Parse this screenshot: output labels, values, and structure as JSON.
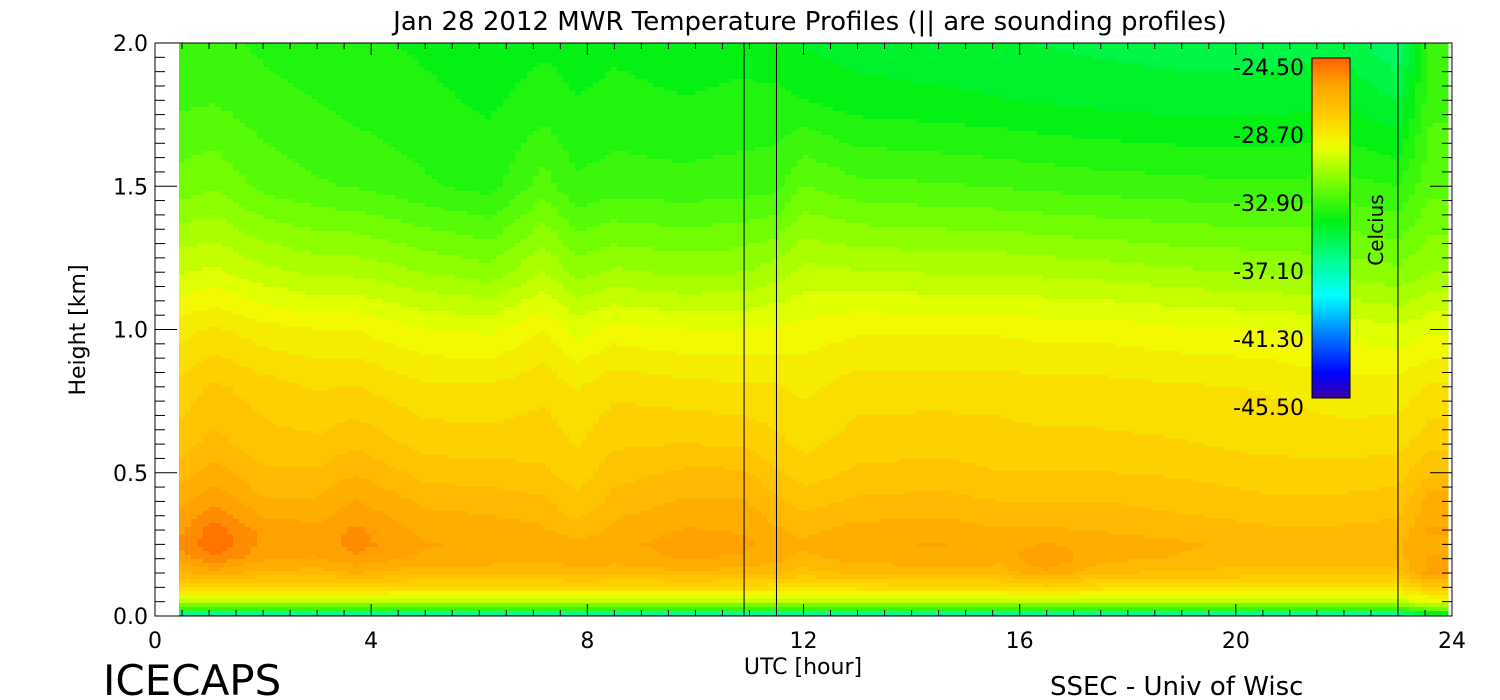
{
  "chart_data": {
    "type": "heatmap",
    "title": "Jan 28 2012 MWR Temperature Profiles (|| are sounding profiles)",
    "xlabel": "UTC [hour]",
    "ylabel": "Height [km]",
    "xlim": [
      0,
      24
    ],
    "ylim": [
      0,
      2.0
    ],
    "x_ticks": [
      "0",
      "4",
      "8",
      "12",
      "16",
      "20",
      "24"
    ],
    "x_tick_values": [
      0,
      4,
      8,
      12,
      16,
      20,
      24
    ],
    "y_ticks": [
      "0.0",
      "0.5",
      "1.0",
      "1.5",
      "2.0"
    ],
    "y_tick_values": [
      0,
      0.5,
      1.0,
      1.5,
      2.0
    ],
    "colorbar": {
      "label": "Celcius",
      "ticks": [
        "-24.50",
        "-28.70",
        "-32.90",
        "-37.10",
        "-41.30",
        "-45.50"
      ],
      "min": -45.5,
      "max": -24.5,
      "placement": "top-right, inside plot"
    },
    "sounding_profiles_utc": [
      10.9,
      11.5,
      23.0
    ],
    "heights_km": [
      0.0,
      0.02,
      0.05,
      0.1,
      0.15,
      0.2,
      0.25,
      0.3,
      0.4,
      0.5,
      0.6,
      0.8,
      1.0,
      1.2,
      1.5,
      1.8,
      2.0
    ],
    "profiles": [
      {
        "hour": 0.4,
        "temps": [
          -40,
          -34,
          -31,
          -28.5,
          -27.0,
          -26.2,
          -25.8,
          -26.0,
          -26.6,
          -27.2,
          -27.7,
          -28.3,
          -29.2,
          -30.6,
          -32.4,
          -33.3,
          -33.6
        ]
      },
      {
        "hour": 1.1,
        "temps": [
          -40,
          -34,
          -31,
          -28.3,
          -26.6,
          -25.4,
          -24.9,
          -25.0,
          -25.9,
          -26.6,
          -27.2,
          -27.8,
          -28.9,
          -30.4,
          -32.2,
          -33.2,
          -33.5
        ]
      },
      {
        "hour": 2.0,
        "temps": [
          -40,
          -34,
          -31,
          -28.5,
          -27.0,
          -26.2,
          -25.9,
          -26.0,
          -26.8,
          -27.3,
          -27.7,
          -28.2,
          -29.3,
          -30.9,
          -32.8,
          -33.5,
          -33.8
        ]
      },
      {
        "hour": 3.0,
        "temps": [
          -40,
          -34,
          -31,
          -28.5,
          -27.1,
          -26.4,
          -26.1,
          -26.2,
          -26.8,
          -27.3,
          -27.8,
          -28.5,
          -29.5,
          -31.2,
          -33.1,
          -33.7,
          -34.0
        ]
      },
      {
        "hour": 3.7,
        "temps": [
          -40,
          -34,
          -31,
          -28.4,
          -26.8,
          -25.9,
          -25.6,
          -25.7,
          -26.3,
          -26.9,
          -27.5,
          -28.4,
          -29.5,
          -31.2,
          -33.2,
          -33.9,
          -34.1
        ]
      },
      {
        "hour": 5.0,
        "temps": [
          -40,
          -34,
          -31,
          -28.6,
          -27.2,
          -26.5,
          -26.3,
          -26.5,
          -27.0,
          -27.6,
          -28.1,
          -28.9,
          -30.0,
          -31.6,
          -33.6,
          -34.1,
          -34.3
        ]
      },
      {
        "hour": 6.2,
        "temps": [
          -40,
          -34,
          -31,
          -28.6,
          -27.2,
          -26.6,
          -26.4,
          -26.6,
          -27.1,
          -27.7,
          -28.2,
          -28.9,
          -30.1,
          -31.9,
          -33.9,
          -34.3,
          -34.5
        ]
      },
      {
        "hour": 7.2,
        "temps": [
          -40,
          -34,
          -31,
          -28.6,
          -27.3,
          -26.7,
          -26.5,
          -26.8,
          -27.3,
          -27.8,
          -28.1,
          -28.6,
          -29.5,
          -31.0,
          -32.9,
          -34.0,
          -34.3
        ]
      },
      {
        "hour": 7.8,
        "temps": [
          -40,
          -34,
          -31,
          -28.5,
          -27.0,
          -26.6,
          -26.7,
          -27.2,
          -27.8,
          -28.2,
          -28.5,
          -29.0,
          -30.2,
          -31.8,
          -33.6,
          -34.2,
          -34.4
        ]
      },
      {
        "hour": 8.5,
        "temps": [
          -40,
          -34,
          -31,
          -28.6,
          -27.2,
          -26.6,
          -26.5,
          -26.7,
          -27.2,
          -27.6,
          -28.0,
          -28.6,
          -29.8,
          -31.5,
          -33.4,
          -34.1,
          -34.3
        ]
      },
      {
        "hour": 9.8,
        "temps": [
          -40,
          -34,
          -31,
          -28.6,
          -27.0,
          -26.3,
          -26.1,
          -26.3,
          -26.8,
          -27.3,
          -27.9,
          -28.8,
          -30.0,
          -31.7,
          -33.5,
          -34.2,
          -34.4
        ]
      },
      {
        "hour": 10.9,
        "temps": [
          -40,
          -34,
          -31,
          -28.6,
          -27.1,
          -26.4,
          -26.2,
          -26.4,
          -26.8,
          -27.3,
          -28.0,
          -28.9,
          -30.0,
          -31.6,
          -33.4,
          -34.1,
          -34.4
        ]
      },
      {
        "hour": 11.5,
        "temps": [
          -40,
          -34,
          -31,
          -28.7,
          -27.3,
          -26.7,
          -26.5,
          -26.8,
          -27.3,
          -27.8,
          -28.3,
          -28.9,
          -29.9,
          -31.3,
          -33.3,
          -34.1,
          -34.5
        ]
      },
      {
        "hour": 12.0,
        "temps": [
          -40,
          -34,
          -31,
          -28.9,
          -27.6,
          -27.0,
          -26.8,
          -27.0,
          -27.6,
          -28.2,
          -28.6,
          -29.1,
          -29.8,
          -30.9,
          -32.6,
          -34.2,
          -34.8
        ]
      },
      {
        "hour": 13.0,
        "temps": [
          -40,
          -34,
          -31,
          -28.7,
          -27.3,
          -26.6,
          -26.4,
          -26.7,
          -27.3,
          -27.8,
          -28.2,
          -28.7,
          -29.6,
          -31.0,
          -33.0,
          -34.5,
          -35.0
        ]
      },
      {
        "hour": 14.5,
        "temps": [
          -40,
          -34,
          -31,
          -28.6,
          -27.2,
          -26.5,
          -26.3,
          -26.6,
          -27.2,
          -27.7,
          -28.1,
          -28.7,
          -29.6,
          -31.1,
          -33.1,
          -34.6,
          -35.1
        ]
      },
      {
        "hour": 15.6,
        "temps": [
          -40,
          -34,
          -31,
          -28.6,
          -27.2,
          -26.6,
          -26.5,
          -26.8,
          -27.4,
          -27.9,
          -28.2,
          -28.7,
          -29.6,
          -31.1,
          -33.2,
          -34.7,
          -35.2
        ]
      },
      {
        "hour": 16.5,
        "temps": [
          -40,
          -34,
          -31,
          -28.2,
          -26.4,
          -25.9,
          -26.3,
          -26.8,
          -27.4,
          -27.9,
          -28.3,
          -28.8,
          -29.7,
          -31.2,
          -33.3,
          -34.8,
          -35.3
        ]
      },
      {
        "hour": 17.5,
        "temps": [
          -40,
          -34,
          -31,
          -28.7,
          -27.3,
          -26.7,
          -26.6,
          -26.9,
          -27.4,
          -27.9,
          -28.3,
          -28.8,
          -29.7,
          -31.3,
          -33.4,
          -34.9,
          -35.4
        ]
      },
      {
        "hour": 19.0,
        "temps": [
          -40,
          -34,
          -31,
          -28.8,
          -27.5,
          -26.9,
          -26.8,
          -27.1,
          -27.6,
          -28.0,
          -28.4,
          -28.9,
          -29.9,
          -31.5,
          -33.5,
          -35.0,
          -35.5
        ]
      },
      {
        "hour": 20.5,
        "temps": [
          -40,
          -34,
          -31,
          -28.8,
          -27.6,
          -27.1,
          -27.0,
          -27.3,
          -27.8,
          -28.2,
          -28.6,
          -29.0,
          -30.0,
          -31.6,
          -33.6,
          -35.0,
          -35.5
        ]
      },
      {
        "hour": 22.0,
        "temps": [
          -40,
          -34,
          -31,
          -28.8,
          -27.6,
          -27.1,
          -27.0,
          -27.3,
          -27.8,
          -28.2,
          -28.7,
          -29.3,
          -30.2,
          -31.8,
          -33.5,
          -34.8,
          -35.4
        ]
      },
      {
        "hour": 23.0,
        "temps": [
          -40,
          -34,
          -31,
          -28.8,
          -27.6,
          -27.0,
          -26.9,
          -27.2,
          -27.7,
          -28.1,
          -28.6,
          -29.3,
          -30.4,
          -32.0,
          -33.7,
          -35.3,
          -36.3
        ]
      },
      {
        "hour": 23.6,
        "temps": [
          -36,
          -33,
          -30,
          -28.0,
          -26.0,
          -26.3,
          -26.4,
          -26.3,
          -26.6,
          -27.4,
          -28.1,
          -28.9,
          -30.1,
          -31.6,
          -32.8,
          -33.3,
          -33.5
        ]
      }
    ]
  },
  "footer": {
    "left_text": "ICECAPS",
    "right_text": "SSEC - Univ of Wisc"
  }
}
